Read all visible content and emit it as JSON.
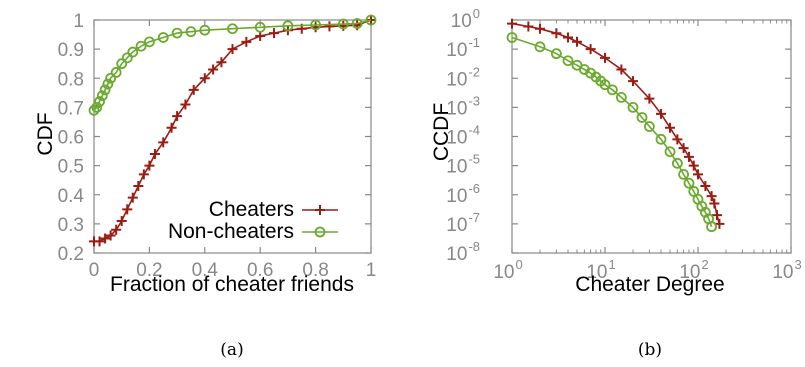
{
  "colors": {
    "cheaters": "#9b1c13",
    "non_cheaters": "#6aaa2e",
    "axis": "#888888",
    "text": "#000000"
  },
  "chart_data": [
    {
      "type": "line",
      "caption": "(a)",
      "xlabel": "Fraction of cheater friends",
      "ylabel": "CDF",
      "xlim": [
        0,
        1
      ],
      "ylim": [
        0.2,
        1
      ],
      "x_ticks": [
        "0",
        "0.2",
        "0.4",
        "0.6",
        "0.8",
        "1"
      ],
      "y_ticks": [
        "0.2",
        "0.3",
        "0.4",
        "0.5",
        "0.6",
        "0.7",
        "0.8",
        "0.9",
        "1"
      ],
      "legend_position": "bottom-right",
      "grid": false,
      "series": [
        {
          "name": "Cheaters",
          "marker": "plus",
          "points": [
            [
              0.0,
              0.24
            ],
            [
              0.02,
              0.24
            ],
            [
              0.04,
              0.25
            ],
            [
              0.06,
              0.26
            ],
            [
              0.08,
              0.28
            ],
            [
              0.1,
              0.31
            ],
            [
              0.12,
              0.35
            ],
            [
              0.14,
              0.39
            ],
            [
              0.16,
              0.43
            ],
            [
              0.18,
              0.47
            ],
            [
              0.2,
              0.5
            ],
            [
              0.22,
              0.54
            ],
            [
              0.25,
              0.58
            ],
            [
              0.28,
              0.63
            ],
            [
              0.3,
              0.67
            ],
            [
              0.33,
              0.71
            ],
            [
              0.36,
              0.76
            ],
            [
              0.4,
              0.8
            ],
            [
              0.43,
              0.83
            ],
            [
              0.46,
              0.855
            ],
            [
              0.5,
              0.9
            ],
            [
              0.55,
              0.925
            ],
            [
              0.6,
              0.945
            ],
            [
              0.65,
              0.955
            ],
            [
              0.7,
              0.965
            ],
            [
              0.75,
              0.97
            ],
            [
              0.8,
              0.975
            ],
            [
              0.85,
              0.978
            ],
            [
              0.9,
              0.98
            ],
            [
              0.95,
              0.982
            ],
            [
              1.0,
              1.0
            ]
          ]
        },
        {
          "name": "Non-cheaters",
          "marker": "circle",
          "points": [
            [
              0.0,
              0.69
            ],
            [
              0.01,
              0.7
            ],
            [
              0.02,
              0.72
            ],
            [
              0.03,
              0.74
            ],
            [
              0.04,
              0.76
            ],
            [
              0.05,
              0.78
            ],
            [
              0.06,
              0.8
            ],
            [
              0.08,
              0.82
            ],
            [
              0.1,
              0.85
            ],
            [
              0.12,
              0.87
            ],
            [
              0.14,
              0.89
            ],
            [
              0.17,
              0.91
            ],
            [
              0.2,
              0.925
            ],
            [
              0.25,
              0.94
            ],
            [
              0.3,
              0.955
            ],
            [
              0.35,
              0.96
            ],
            [
              0.4,
              0.965
            ],
            [
              0.5,
              0.97
            ],
            [
              0.6,
              0.975
            ],
            [
              0.7,
              0.98
            ],
            [
              0.8,
              0.983
            ],
            [
              0.9,
              0.986
            ],
            [
              0.95,
              0.988
            ],
            [
              1.0,
              1.0
            ]
          ]
        }
      ]
    },
    {
      "type": "line",
      "caption": "(b)",
      "xlabel": "Cheater Degree",
      "ylabel": "CCDF",
      "xscale": "log",
      "yscale": "log",
      "xlim": [
        1,
        1000
      ],
      "ylim": [
        1e-08,
        1
      ],
      "x_ticks": [
        {
          "base": "10",
          "exp": "0"
        },
        {
          "base": "10",
          "exp": "1"
        },
        {
          "base": "10",
          "exp": "2"
        },
        {
          "base": "10",
          "exp": "3"
        }
      ],
      "y_ticks": [
        {
          "base": "10",
          "exp": "-8"
        },
        {
          "base": "10",
          "exp": "-7"
        },
        {
          "base": "10",
          "exp": "-6"
        },
        {
          "base": "10",
          "exp": "-5"
        },
        {
          "base": "10",
          "exp": "-4"
        },
        {
          "base": "10",
          "exp": "-3"
        },
        {
          "base": "10",
          "exp": "-2"
        },
        {
          "base": "10",
          "exp": "-1"
        },
        {
          "base": "10",
          "exp": "0"
        }
      ],
      "grid": false,
      "series": [
        {
          "name": "Cheaters",
          "marker": "plus",
          "points": [
            [
              1,
              0.75
            ],
            [
              1.5,
              0.6
            ],
            [
              2,
              0.5
            ],
            [
              3,
              0.35
            ],
            [
              4,
              0.25
            ],
            [
              5,
              0.18
            ],
            [
              7,
              0.1
            ],
            [
              10,
              0.05
            ],
            [
              15,
              0.02
            ],
            [
              20,
              0.008
            ],
            [
              30,
              0.002
            ],
            [
              40,
              0.0006
            ],
            [
              50,
              0.0002
            ],
            [
              60,
              8e-05
            ],
            [
              70,
              4e-05
            ],
            [
              80,
              2e-05
            ],
            [
              90,
              1e-05
            ],
            [
              100,
              5e-06
            ],
            [
              120,
              2e-06
            ],
            [
              140,
              9e-07
            ],
            [
              150,
              5e-07
            ],
            [
              160,
              2e-07
            ],
            [
              170,
              1e-07
            ]
          ]
        },
        {
          "name": "Non-cheaters",
          "marker": "circle",
          "points": [
            [
              1,
              0.25
            ],
            [
              2,
              0.12
            ],
            [
              3,
              0.07
            ],
            [
              4,
              0.04
            ],
            [
              5,
              0.028
            ],
            [
              6,
              0.02
            ],
            [
              7,
              0.015
            ],
            [
              8,
              0.011
            ],
            [
              9,
              0.008
            ],
            [
              10,
              0.006
            ],
            [
              12,
              0.004
            ],
            [
              15,
              0.0022
            ],
            [
              20,
              0.001
            ],
            [
              25,
              0.00045
            ],
            [
              30,
              0.00022
            ],
            [
              40,
              8e-05
            ],
            [
              50,
              3e-05
            ],
            [
              60,
              1.2e-05
            ],
            [
              70,
              5e-06
            ],
            [
              80,
              2.5e-06
            ],
            [
              90,
              1.3e-06
            ],
            [
              100,
              7e-07
            ],
            [
              110,
              4e-07
            ],
            [
              120,
              2.5e-07
            ],
            [
              130,
              1.5e-07
            ],
            [
              140,
              8e-08
            ]
          ]
        }
      ]
    }
  ]
}
